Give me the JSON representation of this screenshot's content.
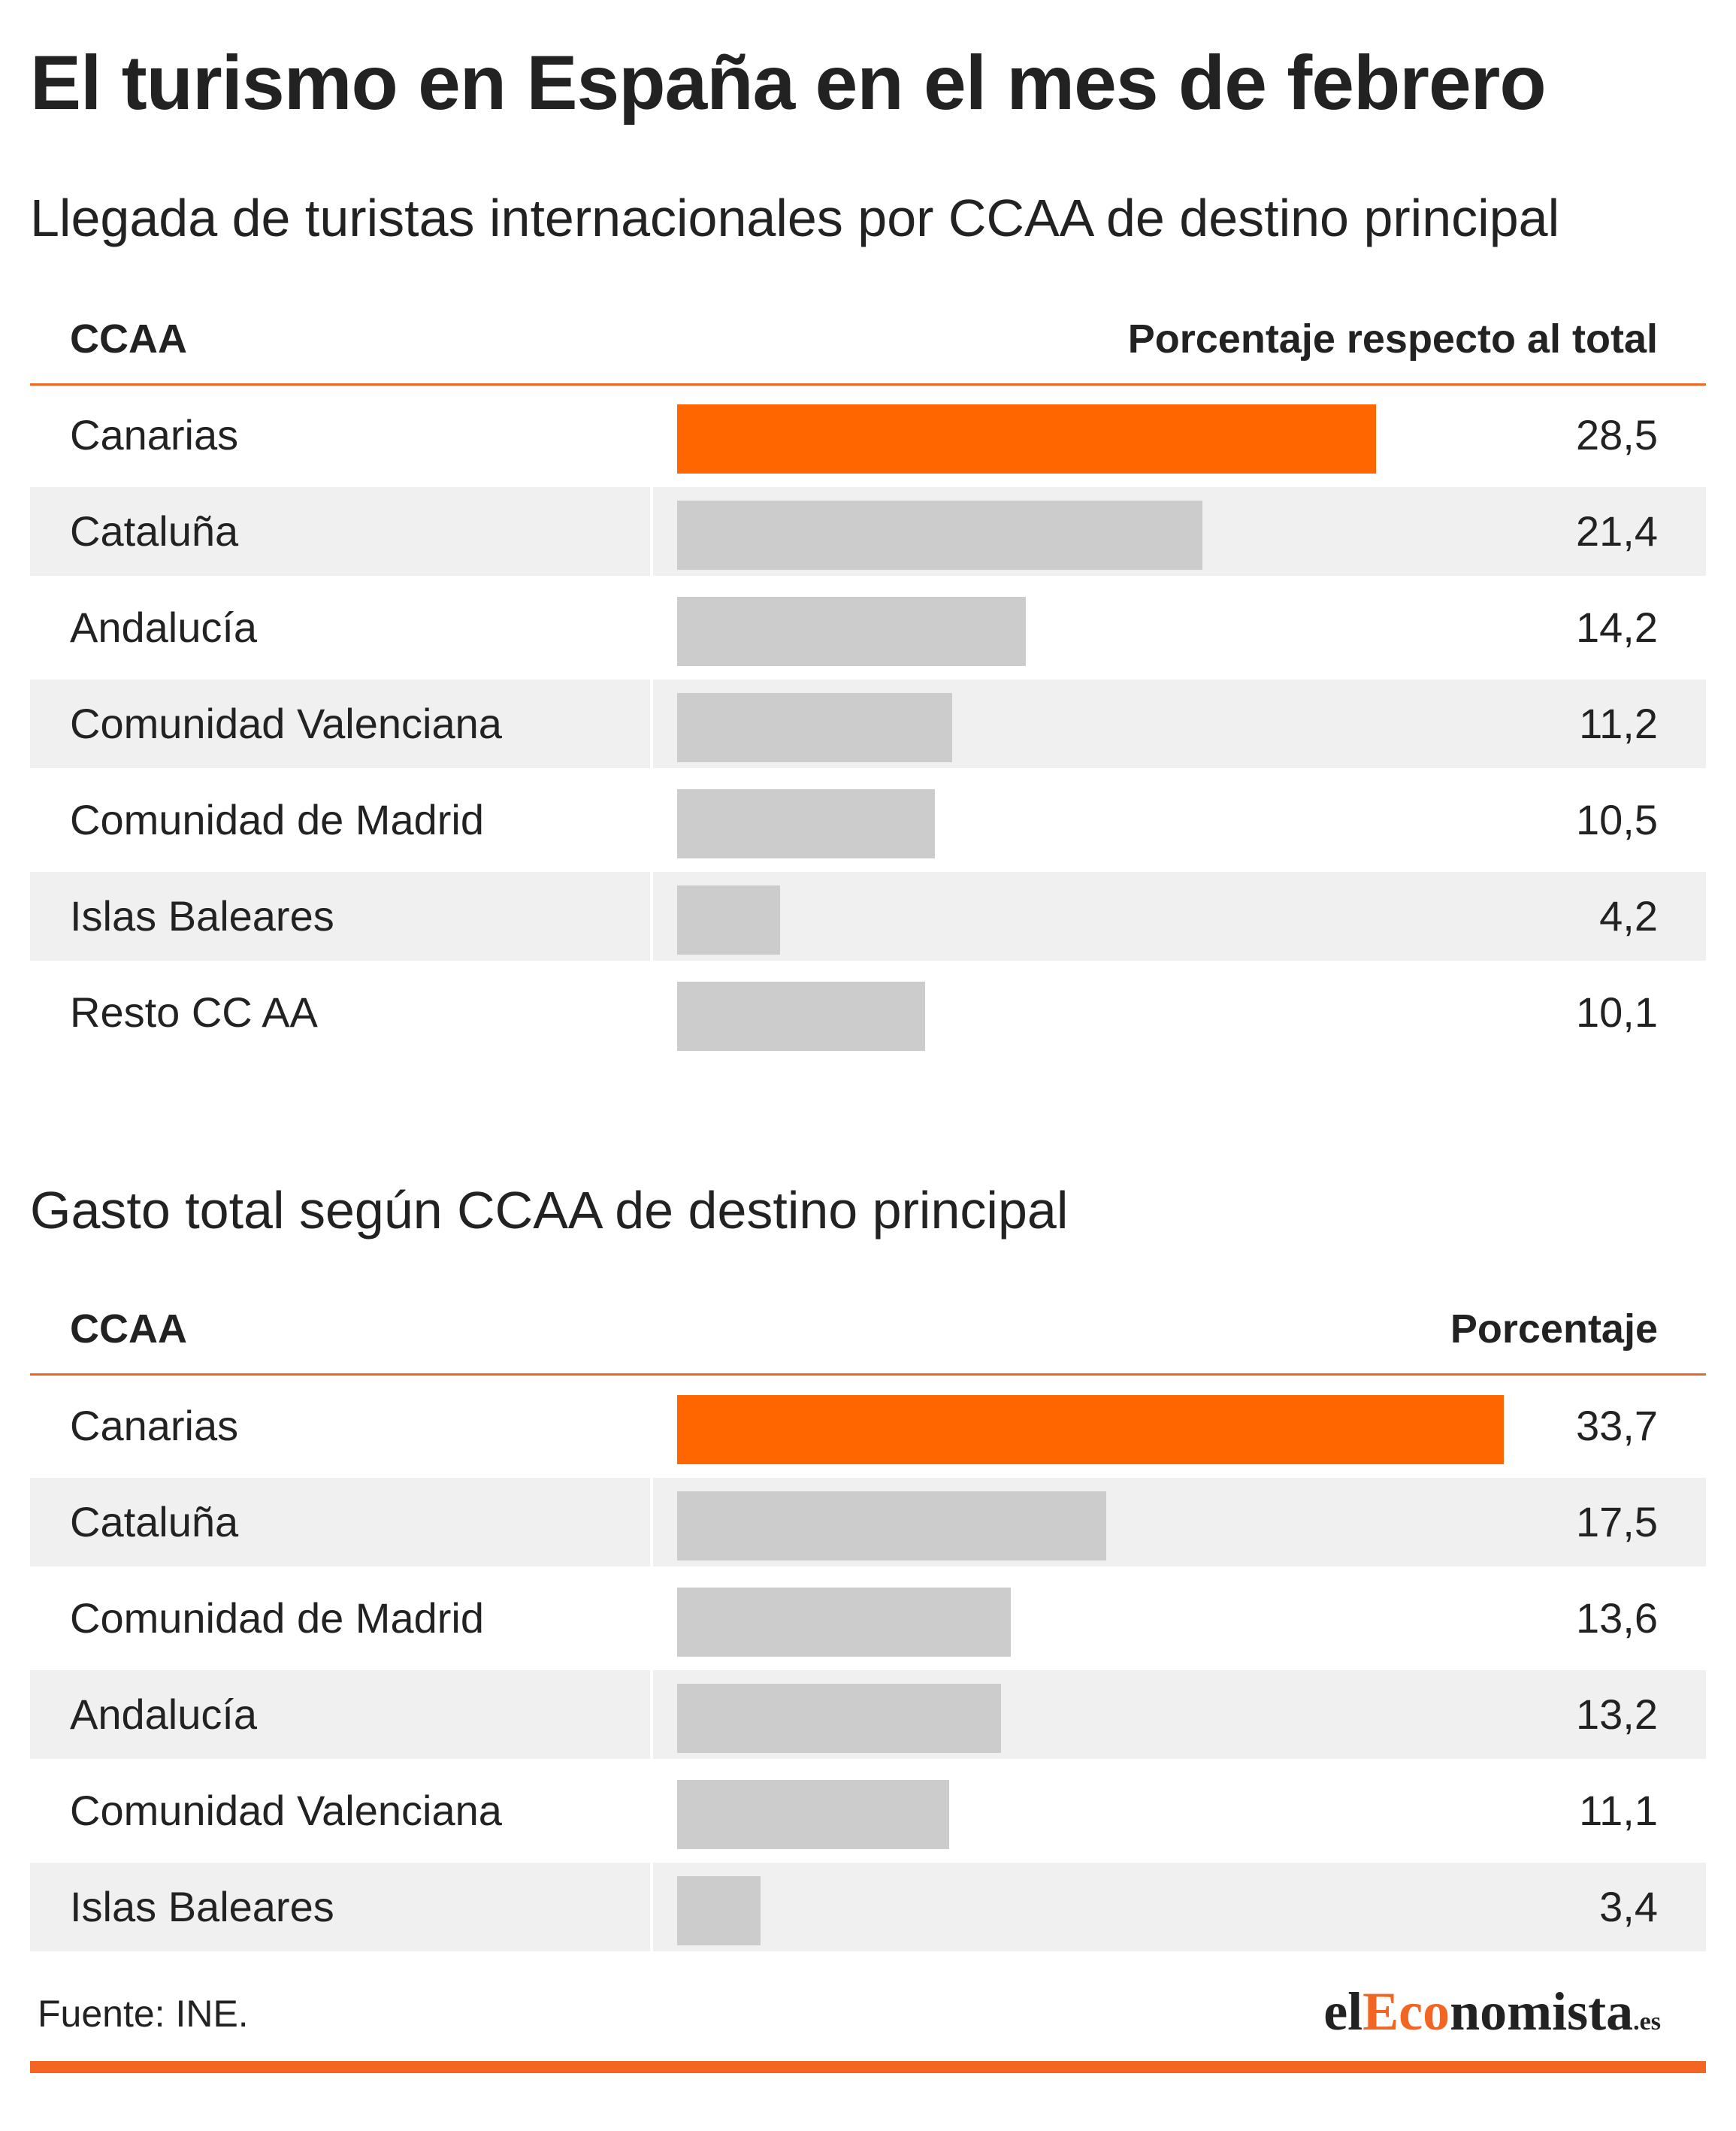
{
  "title": "El turismo en España en el mes de febrero",
  "colors": {
    "highlight": "#FF6600",
    "bar": "#CCCCCC",
    "rule": "#F26522",
    "row_shade": "#F0F0F0",
    "text": "#222222"
  },
  "section1": {
    "subtitle": "Llegada de turistas internacionales por CCAA de destino principal",
    "col_left": "CCAA",
    "col_right": "Porcentaje respecto al total",
    "rows": [
      {
        "label": "Canarias",
        "value": "28,5"
      },
      {
        "label": "Cataluña",
        "value": "21,4"
      },
      {
        "label": "Andalucía",
        "value": "14,2"
      },
      {
        "label": "Comunidad Valenciana",
        "value": "11,2"
      },
      {
        "label": "Comunidad de Madrid",
        "value": "10,5"
      },
      {
        "label": "Islas Baleares",
        "value": "4,2"
      },
      {
        "label": "Resto CC AA",
        "value": "10,1"
      }
    ]
  },
  "section2": {
    "subtitle": "Gasto total según CCAA de destino principal",
    "col_left": "CCAA",
    "col_right": "Porcentaje",
    "rows": [
      {
        "label": "Canarias",
        "value": "33,7"
      },
      {
        "label": "Cataluña",
        "value": "17,5"
      },
      {
        "label": "Comunidad de Madrid",
        "value": "13,6"
      },
      {
        "label": "Andalucía",
        "value": "13,2"
      },
      {
        "label": "Comunidad Valenciana",
        "value": "11,1"
      },
      {
        "label": "Islas Baleares",
        "value": "3,4"
      }
    ]
  },
  "chart_data": [
    {
      "type": "bar",
      "title": "Llegada de turistas internacionales por CCAA de destino principal",
      "xlabel": "CCAA",
      "ylabel": "Porcentaje respecto al total",
      "categories": [
        "Canarias",
        "Cataluña",
        "Andalucía",
        "Comunidad Valenciana",
        "Comunidad de Madrid",
        "Islas Baleares",
        "Resto CC AA"
      ],
      "values": [
        28.5,
        21.4,
        14.2,
        11.2,
        10.5,
        4.2,
        10.1
      ],
      "highlight_index": 0
    },
    {
      "type": "bar",
      "title": "Gasto total según CCAA de destino principal",
      "xlabel": "CCAA",
      "ylabel": "Porcentaje",
      "categories": [
        "Canarias",
        "Cataluña",
        "Comunidad de Madrid",
        "Andalucía",
        "Comunidad Valenciana",
        "Islas Baleares"
      ],
      "values": [
        33.7,
        17.5,
        13.6,
        13.2,
        11.1,
        3.4
      ],
      "highlight_index": 0
    }
  ],
  "footer": {
    "source": "Fuente: INE.",
    "logo_prefix": "el",
    "logo_accent": "Eco",
    "logo_main": "nomista",
    "logo_suffix": ".es"
  }
}
